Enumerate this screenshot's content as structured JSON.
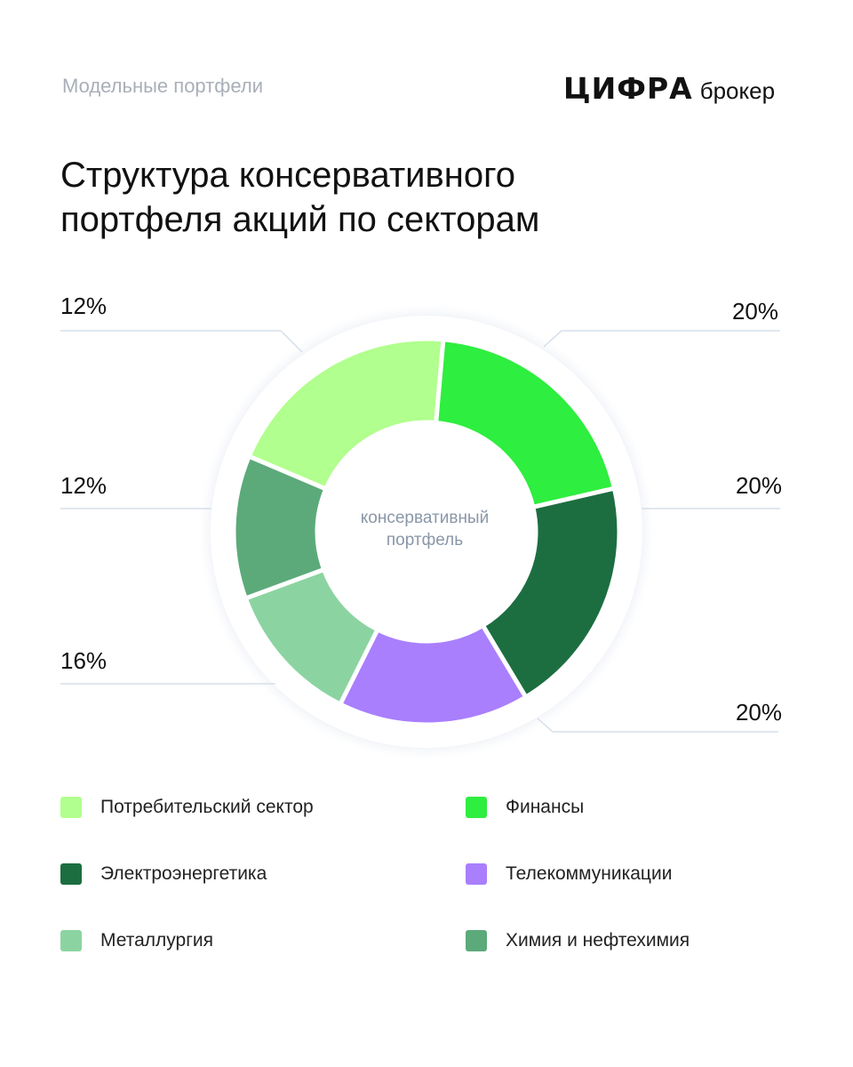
{
  "header": {
    "subtitle": "Модельные портфели",
    "brand": "ЦИФРА",
    "brand_sub": "брокер"
  },
  "title_lines": [
    "Структура консервативного",
    "портфеля акций по секторам"
  ],
  "chart_data": {
    "type": "pie",
    "variant": "donut",
    "title": "Структура консервативного портфеля акций по секторам",
    "center_label_lines": [
      "консервативный",
      "портфель"
    ],
    "legend_placement": "bottom",
    "categories": [
      "Потребительский сектор",
      "Финансы",
      "Электроэнергетика",
      "Телекоммуникации",
      "Металлургия",
      "Химия и нефтехимия"
    ],
    "values": [
      20,
      20,
      20,
      16,
      12,
      12
    ],
    "labels": [
      "20%",
      "20%",
      "20%",
      "16%",
      "12%",
      "12%"
    ],
    "colors": [
      "#b1ff8e",
      "#2eee3f",
      "#1c6e40",
      "#a97ffd",
      "#8bd4a1",
      "#5caa7a"
    ]
  },
  "legend": [
    {
      "label": "Потребительский сектор",
      "color": "#b1ff8e"
    },
    {
      "label": "Финансы",
      "color": "#2eee3f"
    },
    {
      "label": "Электроэнергетика",
      "color": "#1c6e40"
    },
    {
      "label": "Телекоммуникации",
      "color": "#a97ffd"
    },
    {
      "label": "Металлургия",
      "color": "#8bd4a1"
    },
    {
      "label": "Химия и нефтехимия",
      "color": "#5caa7a"
    }
  ]
}
